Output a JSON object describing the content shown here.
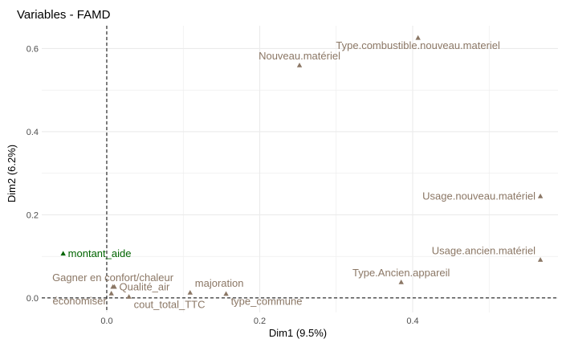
{
  "chart_data": {
    "type": "scatter",
    "title": "Variables - FAMD",
    "xlabel": "Dim1 (9.5%)",
    "ylabel": "Dim2 (6.2%)",
    "xlim": [
      -0.085,
      0.59
    ],
    "ylim": [
      -0.035,
      0.655
    ],
    "x_ticks": [
      0.0,
      0.2,
      0.4
    ],
    "x_tick_labels": [
      "0.0",
      "0.2",
      "0.4"
    ],
    "y_ticks": [
      0.0,
      0.2,
      0.4,
      0.6
    ],
    "y_tick_labels": [
      "0.0",
      "0.2",
      "0.4",
      "0.6"
    ],
    "grid": true,
    "reference_lines": {
      "x": 0,
      "y": 0,
      "style": "dashed"
    },
    "colors": {
      "quanti": "#006400",
      "quali": "#8B7765",
      "grid": "#ebebeb",
      "text": "#4d4d4d"
    },
    "points": [
      {
        "label": "Type.combustible.nouveau.materiel",
        "x": 0.407,
        "y": 0.626,
        "group": "quali",
        "anchor": "middle",
        "label_side": "below"
      },
      {
        "label": "Nouveau.matériel",
        "x": 0.252,
        "y": 0.56,
        "group": "quali",
        "anchor": "middle",
        "label_side": "above"
      },
      {
        "label": "Usage.nouveau.matériel",
        "x": 0.567,
        "y": 0.245,
        "group": "quali",
        "anchor": "end",
        "label_side": "center"
      },
      {
        "label": "Usage.ancien.matériel",
        "x": 0.567,
        "y": 0.092,
        "group": "quali",
        "anchor": "end",
        "label_side": "above"
      },
      {
        "label": "Type.Ancien.appareil",
        "x": 0.385,
        "y": 0.038,
        "group": "quali",
        "anchor": "middle",
        "label_side": "above"
      },
      {
        "label": "montant_aide",
        "x": -0.057,
        "y": 0.107,
        "group": "quanti",
        "anchor": "start",
        "label_side": "center"
      },
      {
        "label": "Gagner en confort/chaleur",
        "x": 0.008,
        "y": 0.027,
        "group": "quali",
        "anchor": "middle",
        "label_side": "above"
      },
      {
        "label": "Qualité_air",
        "x": 0.01,
        "y": 0.027,
        "group": "quali",
        "anchor": "start",
        "label_side": "center"
      },
      {
        "label": "majoration",
        "x": 0.109,
        "y": 0.013,
        "group": "quali",
        "anchor": "start",
        "label_side": "above"
      },
      {
        "label": "économiser",
        "x": 0.006,
        "y": 0.011,
        "group": "quali",
        "anchor": "end",
        "label_side": "below"
      },
      {
        "label": "cout_total_TTC",
        "x": 0.029,
        "y": 0.003,
        "group": "quali",
        "anchor": "start",
        "label_side": "below"
      },
      {
        "label": "type_commune",
        "x": 0.156,
        "y": 0.01,
        "group": "quali",
        "anchor": "start",
        "label_side": "below"
      }
    ]
  }
}
